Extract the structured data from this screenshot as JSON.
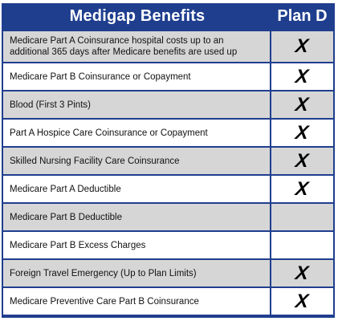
{
  "header": {
    "benefit_title": "Medigap Benefits",
    "plan_title": "Plan D"
  },
  "rows": [
    {
      "benefit": "Medicare Part A Coinsurance hospital costs up to an additional 365 days after Medicare benefits are used up",
      "mark": "X",
      "shade": true
    },
    {
      "benefit": "Medicare Part B Coinsurance or Copayment",
      "mark": "X",
      "shade": false
    },
    {
      "benefit": "Blood (First 3 Pints)",
      "mark": "X",
      "shade": true
    },
    {
      "benefit": "Part A Hospice Care Coinsurance or Copayment",
      "mark": "X",
      "shade": false
    },
    {
      "benefit": "Skilled Nursing Facility Care Coinsurance",
      "mark": "X",
      "shade": true
    },
    {
      "benefit": "Medicare Part A Deductible",
      "mark": "X",
      "shade": false
    },
    {
      "benefit": "Medicare Part B Deductible",
      "mark": "",
      "shade": true
    },
    {
      "benefit": "Medicare Part B Excess Charges",
      "mark": "",
      "shade": false
    },
    {
      "benefit": "Foreign Travel Emergency (Up to Plan Limits)",
      "mark": "X",
      "shade": true
    },
    {
      "benefit": "Medicare Preventive Care Part B Coinsurance",
      "mark": "X",
      "shade": false
    }
  ],
  "colors": {
    "header_background": "#1f3e8e",
    "header_text": "#ffffff",
    "shaded_row": "#d6d6d6",
    "plain_row": "#ffffff"
  }
}
